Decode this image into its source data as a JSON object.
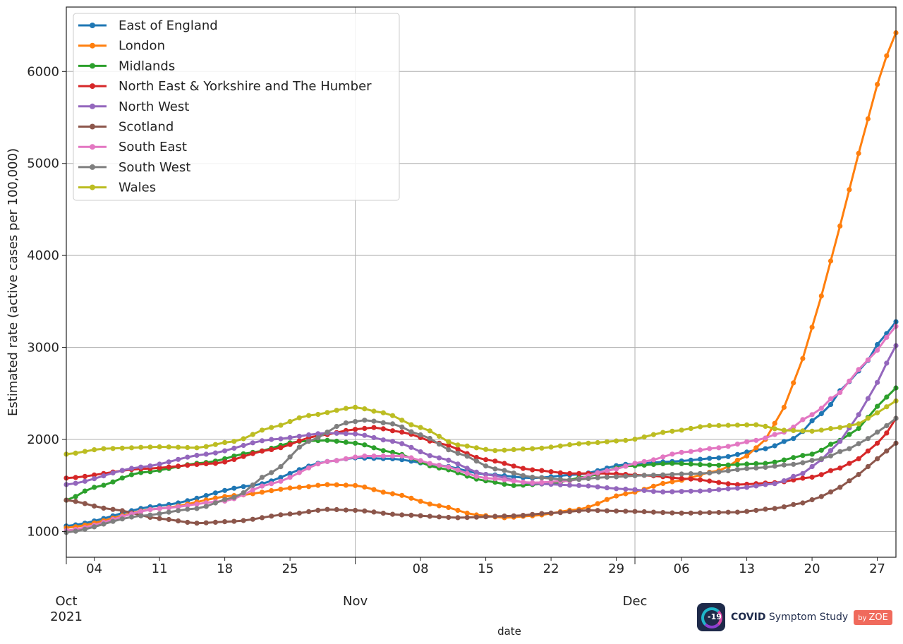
{
  "chart_data": {
    "type": "line",
    "title": "",
    "xlabel": "date",
    "ylabel": "Estimated rate (active cases per 100,000)",
    "ylim": [
      720,
      6700
    ],
    "x_start": "2021-10-01",
    "x_end": "2021-12-29",
    "y_ticks": [
      1000,
      2000,
      3000,
      4000,
      5000,
      6000
    ],
    "y_tick_labels": [
      "1000",
      "2000",
      "3000",
      "4000",
      "5000",
      "6000"
    ],
    "minor_ticks": [
      {
        "day": 3,
        "label": "04"
      },
      {
        "day": 10,
        "label": "11"
      },
      {
        "day": 17,
        "label": "18"
      },
      {
        "day": 24,
        "label": "25"
      },
      {
        "day": 38,
        "label": "08"
      },
      {
        "day": 45,
        "label": "15"
      },
      {
        "day": 52,
        "label": "22"
      },
      {
        "day": 59,
        "label": "29"
      },
      {
        "day": 66,
        "label": "06"
      },
      {
        "day": 73,
        "label": "13"
      },
      {
        "day": 80,
        "label": "20"
      },
      {
        "day": 87,
        "label": "27"
      }
    ],
    "major_ticks": [
      {
        "day": 0,
        "label": "Oct",
        "sublabel": "2021"
      },
      {
        "day": 31,
        "label": "Nov",
        "sublabel": ""
      },
      {
        "day": 61,
        "label": "Dec",
        "sublabel": ""
      }
    ],
    "grid": true,
    "legend_position": "top-left",
    "series": [
      {
        "name": "East of England",
        "color": "#1f77b4",
        "keypoints": [
          [
            0,
            1060
          ],
          [
            10,
            1280
          ],
          [
            20,
            1500
          ],
          [
            28,
            1760
          ],
          [
            31,
            1800
          ],
          [
            35,
            1790
          ],
          [
            40,
            1720
          ],
          [
            45,
            1620
          ],
          [
            50,
            1580
          ],
          [
            55,
            1620
          ],
          [
            60,
            1730
          ],
          [
            65,
            1760
          ],
          [
            70,
            1800
          ],
          [
            75,
            1900
          ],
          [
            78,
            2010
          ],
          [
            81,
            2280
          ],
          [
            84,
            2630
          ],
          [
            86,
            2860
          ],
          [
            87.5,
            3100
          ],
          [
            89,
            3280
          ]
        ]
      },
      {
        "name": "London",
        "color": "#ff7f0e",
        "keypoints": [
          [
            0,
            1040
          ],
          [
            10,
            1250
          ],
          [
            18,
            1390
          ],
          [
            25,
            1480
          ],
          [
            28,
            1510
          ],
          [
            31,
            1500
          ],
          [
            35,
            1410
          ],
          [
            40,
            1280
          ],
          [
            44,
            1180
          ],
          [
            47,
            1150
          ],
          [
            50,
            1170
          ],
          [
            55,
            1240
          ],
          [
            60,
            1410
          ],
          [
            65,
            1540
          ],
          [
            70,
            1660
          ],
          [
            73,
            1820
          ],
          [
            75,
            2000
          ],
          [
            77,
            2350
          ],
          [
            79,
            2880
          ],
          [
            81,
            3560
          ],
          [
            83,
            4320
          ],
          [
            85,
            5110
          ],
          [
            87,
            5860
          ],
          [
            88,
            6170
          ],
          [
            89,
            6420
          ]
        ]
      },
      {
        "name": "Midlands",
        "color": "#2ca02c",
        "keypoints": [
          [
            0,
            1340
          ],
          [
            3,
            1480
          ],
          [
            8,
            1640
          ],
          [
            15,
            1750
          ],
          [
            20,
            1860
          ],
          [
            25,
            1980
          ],
          [
            28,
            1990
          ],
          [
            31,
            1960
          ],
          [
            35,
            1860
          ],
          [
            40,
            1690
          ],
          [
            45,
            1550
          ],
          [
            48,
            1500
          ],
          [
            52,
            1520
          ],
          [
            56,
            1600
          ],
          [
            60,
            1710
          ],
          [
            65,
            1740
          ],
          [
            70,
            1720
          ],
          [
            75,
            1740
          ],
          [
            80,
            1840
          ],
          [
            83,
            1990
          ],
          [
            85,
            2120
          ],
          [
            87,
            2360
          ],
          [
            88,
            2460
          ],
          [
            89,
            2560
          ]
        ]
      },
      {
        "name": "North East & Yorkshire and The Humber",
        "color": "#d62728",
        "keypoints": [
          [
            0,
            1580
          ],
          [
            8,
            1680
          ],
          [
            16,
            1740
          ],
          [
            22,
            1890
          ],
          [
            27,
            2040
          ],
          [
            31,
            2110
          ],
          [
            33,
            2130
          ],
          [
            36,
            2080
          ],
          [
            40,
            1960
          ],
          [
            45,
            1780
          ],
          [
            50,
            1670
          ],
          [
            54,
            1630
          ],
          [
            58,
            1630
          ],
          [
            62,
            1610
          ],
          [
            67,
            1570
          ],
          [
            72,
            1510
          ],
          [
            76,
            1530
          ],
          [
            80,
            1590
          ],
          [
            83,
            1690
          ],
          [
            85,
            1790
          ],
          [
            87,
            1960
          ],
          [
            88,
            2070
          ],
          [
            89,
            2230
          ]
        ]
      },
      {
        "name": "North West",
        "color": "#9467bd",
        "keypoints": [
          [
            0,
            1510
          ],
          [
            8,
            1700
          ],
          [
            15,
            1840
          ],
          [
            22,
            2000
          ],
          [
            28,
            2070
          ],
          [
            31,
            2060
          ],
          [
            35,
            1980
          ],
          [
            40,
            1800
          ],
          [
            45,
            1620
          ],
          [
            50,
            1520
          ],
          [
            55,
            1500
          ],
          [
            60,
            1460
          ],
          [
            64,
            1430
          ],
          [
            68,
            1440
          ],
          [
            72,
            1470
          ],
          [
            76,
            1520
          ],
          [
            79,
            1630
          ],
          [
            81,
            1780
          ],
          [
            83,
            1980
          ],
          [
            85,
            2270
          ],
          [
            87,
            2620
          ],
          [
            88,
            2830
          ],
          [
            89,
            3020
          ]
        ]
      },
      {
        "name": "Scotland",
        "color": "#8c564b",
        "keypoints": [
          [
            0,
            1340
          ],
          [
            5,
            1240
          ],
          [
            10,
            1140
          ],
          [
            14,
            1090
          ],
          [
            18,
            1110
          ],
          [
            24,
            1190
          ],
          [
            28,
            1240
          ],
          [
            31,
            1230
          ],
          [
            36,
            1180
          ],
          [
            42,
            1150
          ],
          [
            48,
            1170
          ],
          [
            52,
            1200
          ],
          [
            56,
            1230
          ],
          [
            60,
            1220
          ],
          [
            66,
            1200
          ],
          [
            72,
            1210
          ],
          [
            76,
            1250
          ],
          [
            79,
            1310
          ],
          [
            81,
            1380
          ],
          [
            83,
            1480
          ],
          [
            85,
            1620
          ],
          [
            87,
            1790
          ],
          [
            89,
            1960
          ]
        ]
      },
      {
        "name": "South East",
        "color": "#e377c2",
        "keypoints": [
          [
            0,
            1010
          ],
          [
            10,
            1250
          ],
          [
            17,
            1330
          ],
          [
            22,
            1520
          ],
          [
            28,
            1760
          ],
          [
            32,
            1820
          ],
          [
            36,
            1820
          ],
          [
            40,
            1720
          ],
          [
            45,
            1580
          ],
          [
            50,
            1530
          ],
          [
            54,
            1550
          ],
          [
            58,
            1660
          ],
          [
            62,
            1760
          ],
          [
            66,
            1860
          ],
          [
            70,
            1910
          ],
          [
            74,
            1990
          ],
          [
            77,
            2080
          ],
          [
            80,
            2270
          ],
          [
            83,
            2510
          ],
          [
            85,
            2760
          ],
          [
            87,
            2970
          ],
          [
            88,
            3110
          ],
          [
            89,
            3230
          ]
        ]
      },
      {
        "name": "South West",
        "color": "#7f7f7f",
        "keypoints": [
          [
            0,
            990
          ],
          [
            8,
            1170
          ],
          [
            14,
            1250
          ],
          [
            18,
            1370
          ],
          [
            22,
            1640
          ],
          [
            26,
            1980
          ],
          [
            30,
            2180
          ],
          [
            32,
            2210
          ],
          [
            35,
            2170
          ],
          [
            38,
            2050
          ],
          [
            42,
            1850
          ],
          [
            46,
            1680
          ],
          [
            50,
            1590
          ],
          [
            54,
            1560
          ],
          [
            58,
            1590
          ],
          [
            62,
            1610
          ],
          [
            68,
            1630
          ],
          [
            74,
            1690
          ],
          [
            78,
            1730
          ],
          [
            81,
            1790
          ],
          [
            84,
            1900
          ],
          [
            86,
            2010
          ],
          [
            88,
            2150
          ],
          [
            89,
            2230
          ]
        ]
      },
      {
        "name": "Wales",
        "color": "#bcbd22",
        "keypoints": [
          [
            0,
            1840
          ],
          [
            4,
            1900
          ],
          [
            10,
            1920
          ],
          [
            14,
            1910
          ],
          [
            18,
            1980
          ],
          [
            22,
            2130
          ],
          [
            26,
            2260
          ],
          [
            31,
            2350
          ],
          [
            34,
            2290
          ],
          [
            38,
            2130
          ],
          [
            42,
            1940
          ],
          [
            46,
            1880
          ],
          [
            50,
            1900
          ],
          [
            56,
            1960
          ],
          [
            60,
            1990
          ],
          [
            65,
            2090
          ],
          [
            69,
            2150
          ],
          [
            74,
            2160
          ],
          [
            77,
            2100
          ],
          [
            80,
            2090
          ],
          [
            83,
            2130
          ],
          [
            85,
            2170
          ],
          [
            87,
            2290
          ],
          [
            89,
            2420
          ]
        ]
      }
    ]
  },
  "logo": {
    "mark": "-19",
    "brand_bold": "COVID",
    "brand_rest": " Symptom Study",
    "by": "by",
    "badge": "ZOE"
  }
}
